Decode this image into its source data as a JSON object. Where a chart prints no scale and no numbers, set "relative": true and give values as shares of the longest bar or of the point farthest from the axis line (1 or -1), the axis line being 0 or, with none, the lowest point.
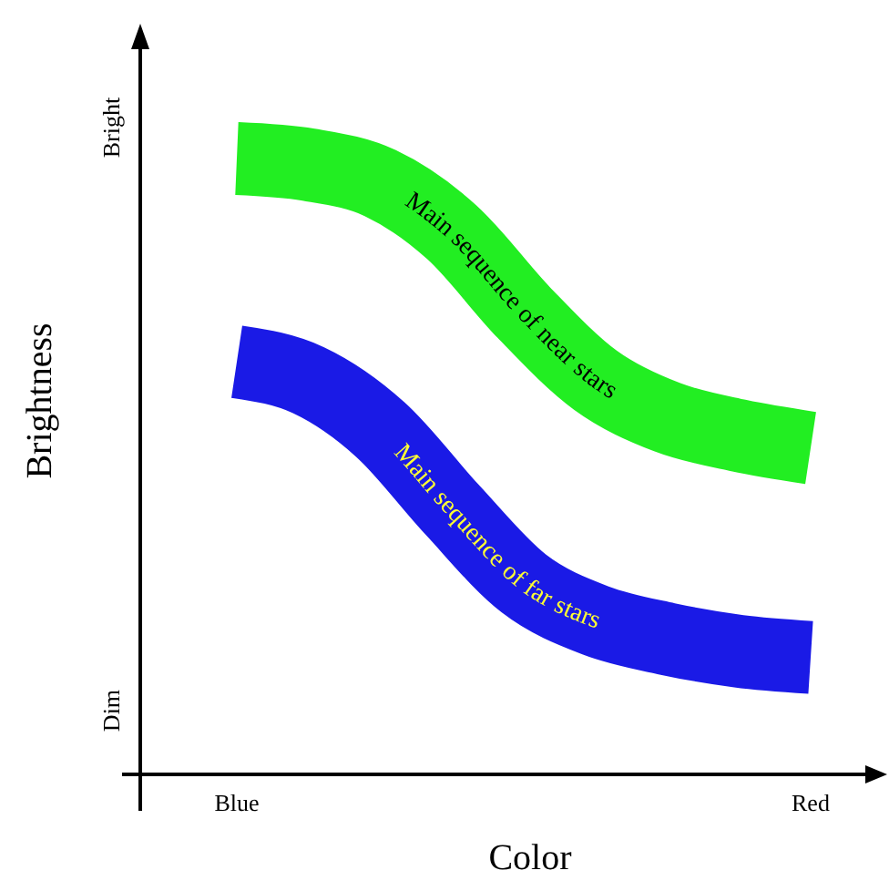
{
  "chart_data": {
    "type": "line",
    "xlabel": "Color",
    "ylabel": "Brightness",
    "relative": true,
    "grid": false,
    "marker": "none",
    "categories": [
      "Blue",
      null,
      null,
      null,
      null,
      null,
      null,
      null,
      "Red"
    ],
    "series": [
      {
        "name": "Main sequence of near stars",
        "color": "#22ee22",
        "values": [
          1,
          0.99,
          0.96,
          0.88,
          0.75,
          0.64,
          0.58,
          0.55,
          0.53
        ]
      },
      {
        "name": "Main sequence of far stars",
        "color": "#1a1ae6",
        "values": [
          0.67,
          0.64,
          0.56,
          0.43,
          0.31,
          0.25,
          0.22,
          0.2,
          0.19
        ]
      }
    ],
    "annotations": [
      "Bright",
      "Dim"
    ]
  }
}
